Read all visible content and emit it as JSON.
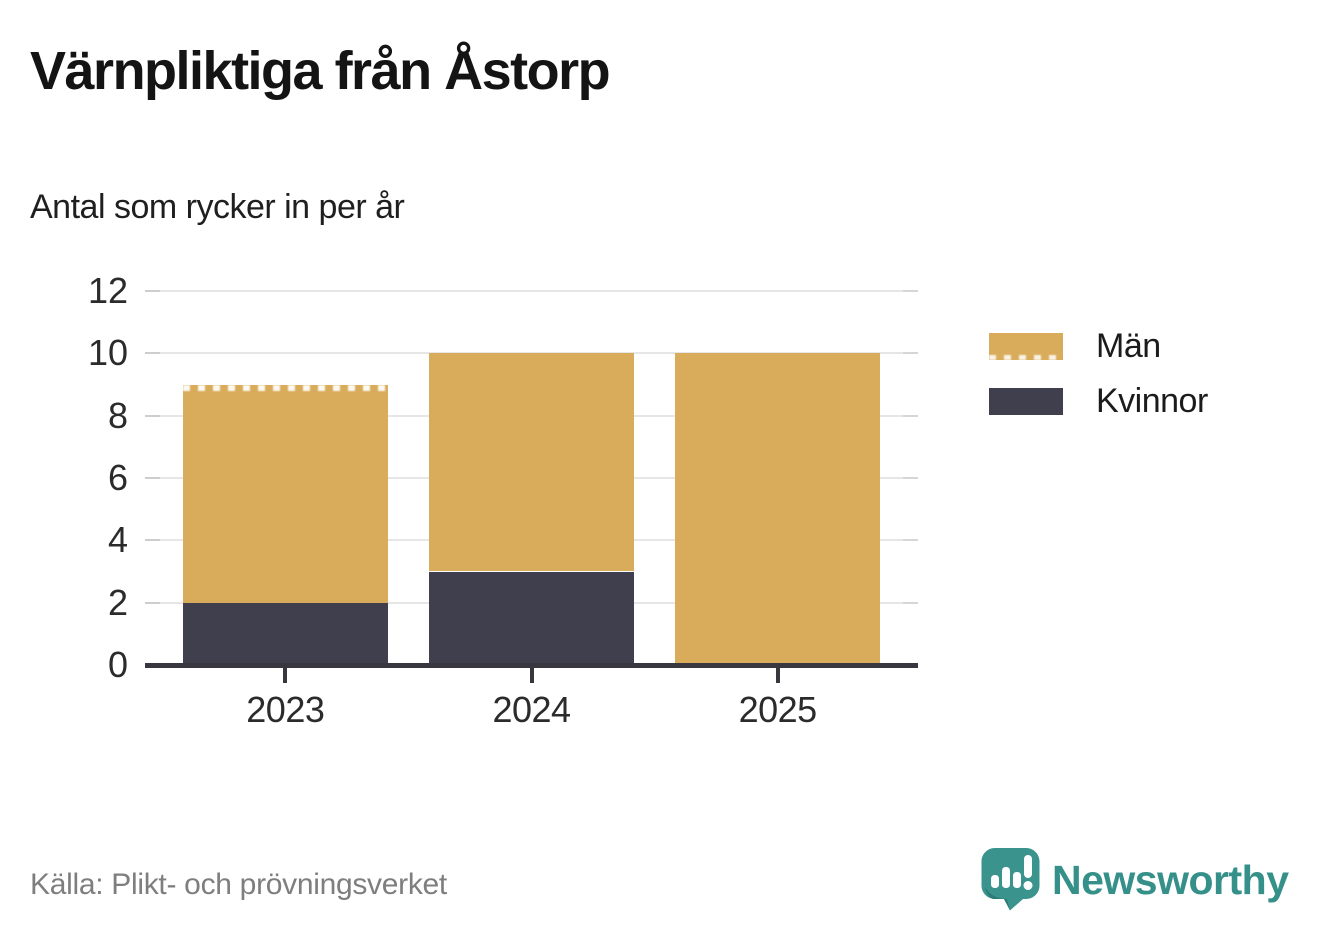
{
  "chart_data": {
    "type": "bar",
    "stacked": true,
    "title": "Värnpliktiga från Åstorp",
    "subtitle": "Antal som rycker in per år",
    "categories": [
      "2023",
      "2024",
      "2025"
    ],
    "series": [
      {
        "name": "Män",
        "color": "#d9ac5b",
        "values": [
          7,
          7,
          10
        ],
        "dashed_top_categories": [
          "2023"
        ]
      },
      {
        "name": "Kvinnor",
        "color": "#403f4d",
        "values": [
          2,
          3,
          0
        ]
      }
    ],
    "stack_totals": [
      9,
      10,
      10
    ],
    "ylim": [
      0,
      12
    ],
    "yticks": [
      0,
      2,
      4,
      6,
      8,
      10,
      12
    ],
    "grid": true,
    "legend_position": "right",
    "xlabel": "",
    "ylabel": ""
  },
  "footer": {
    "source": "Källa: Plikt- och prövningsverket",
    "brand": "Newsworthy"
  },
  "colors": {
    "men": "#d9ac5b",
    "women": "#403f4d",
    "axis": "#38373f",
    "grid": "#e6e6e6",
    "title_text": "#141414",
    "muted_text": "#7e7e7e",
    "brand_teal": "#35908a"
  }
}
